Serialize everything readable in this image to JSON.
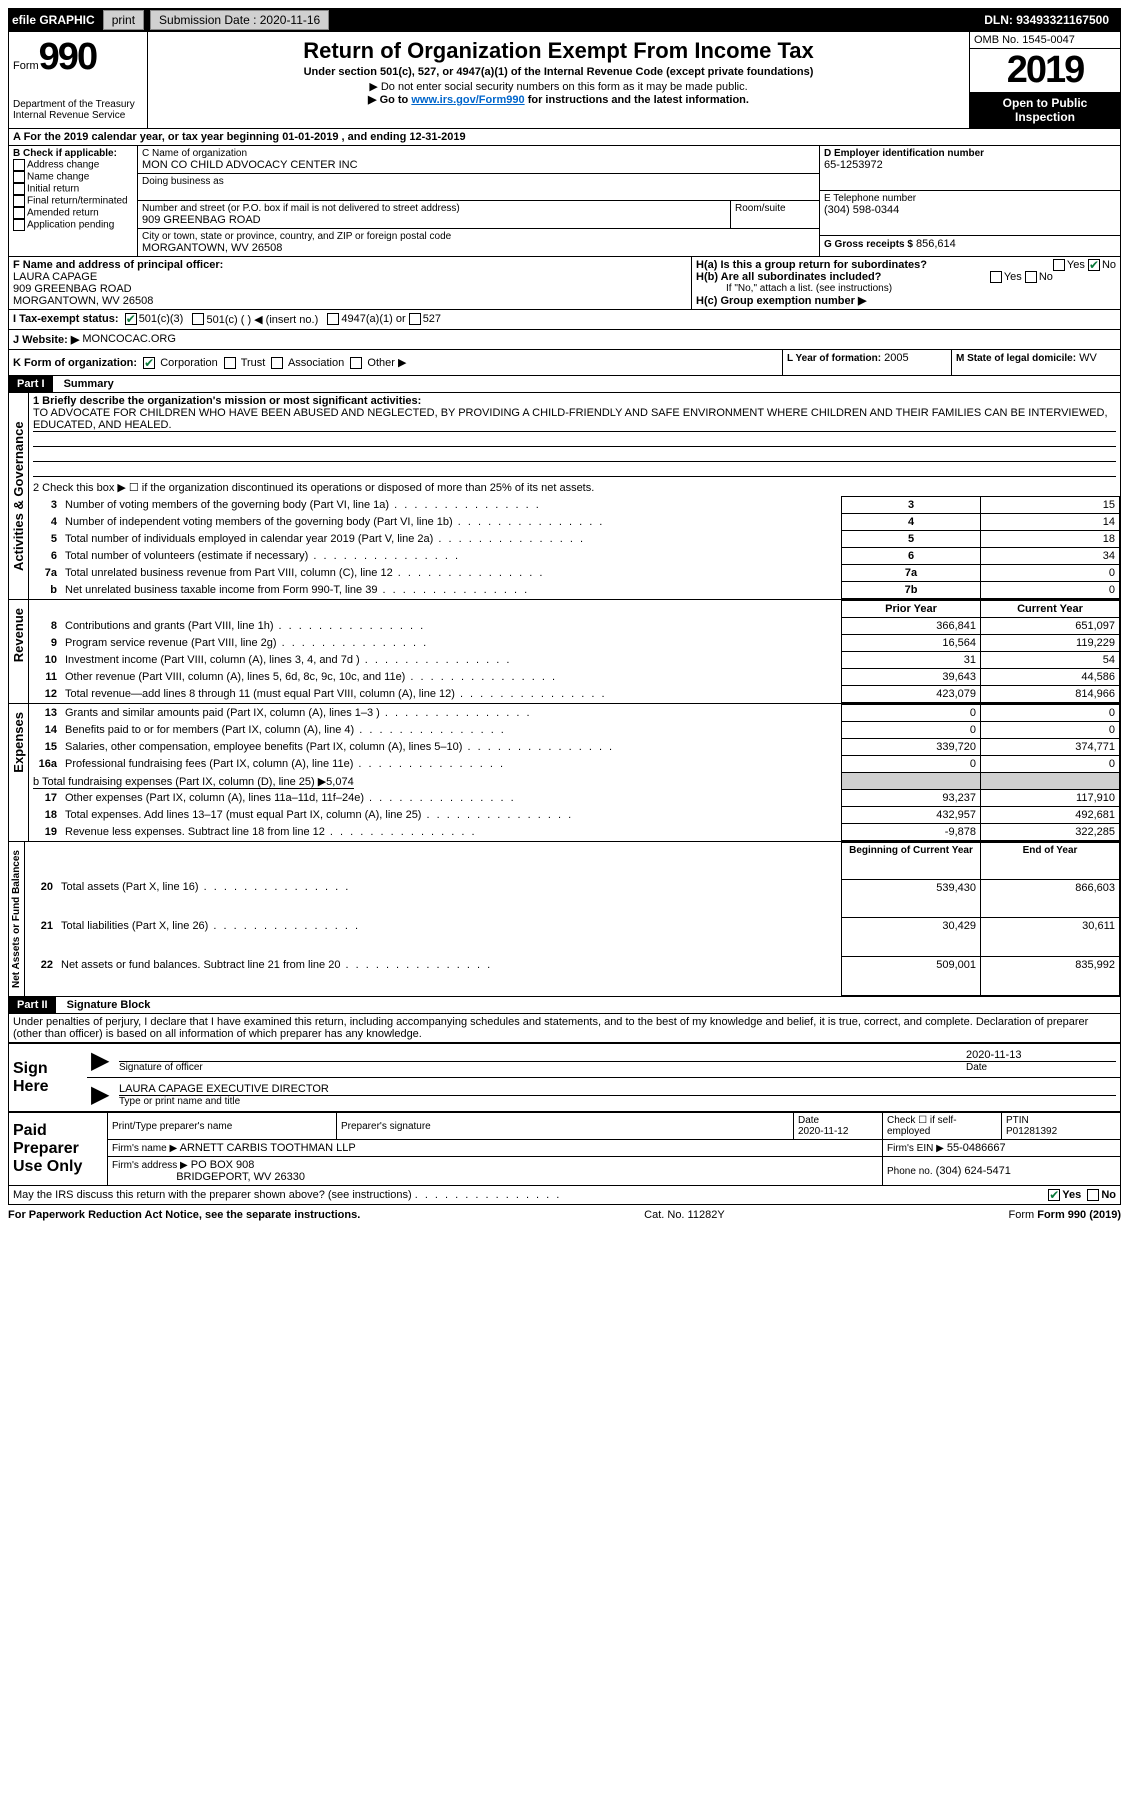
{
  "topbar": {
    "efile": "efile GRAPHIC",
    "print": "print",
    "sub_label": "Submission Date : 2020-11-16",
    "dln_label": "DLN: 93493321167500"
  },
  "header": {
    "form_label": "Form",
    "form_num": "990",
    "title": "Return of Organization Exempt From Income Tax",
    "sub1": "Under section 501(c), 527, or 4947(a)(1) of the Internal Revenue Code (except private foundations)",
    "sub2": "▶ Do not enter social security numbers on this form as it may be made public.",
    "sub3_pre": "▶ Go to ",
    "sub3_link": "www.irs.gov/Form990",
    "sub3_post": " for instructions and the latest information.",
    "dept": "Department of the Treasury\nInternal Revenue Service",
    "omb": "OMB No. 1545-0047",
    "year": "2019",
    "open": "Open to Public Inspection"
  },
  "a_line": "A For the 2019 calendar year, or tax year beginning 01-01-2019   , and ending 12-31-2019",
  "b": {
    "label": "B Check if applicable:",
    "opts": [
      "Address change",
      "Name change",
      "Initial return",
      "Final return/terminated",
      "Amended return",
      "Application pending"
    ]
  },
  "c": {
    "name_label": "C Name of organization",
    "name": "MON CO CHILD ADVOCACY CENTER INC",
    "dba_label": "Doing business as",
    "addr_label": "Number and street (or P.O. box if mail is not delivered to street address)",
    "room_label": "Room/suite",
    "addr": "909 GREENBAG ROAD",
    "city_label": "City or town, state or province, country, and ZIP or foreign postal code",
    "city": "MORGANTOWN, WV  26508"
  },
  "d": {
    "label": "D Employer identification number",
    "val": "65-1253972"
  },
  "e": {
    "label": "E Telephone number",
    "val": "(304) 598-0344"
  },
  "g": {
    "label": "G Gross receipts $",
    "val": "856,614"
  },
  "f": {
    "label": "F  Name and address of principal officer:",
    "name": "LAURA CAPAGE",
    "addr1": "909 GREENBAG ROAD",
    "addr2": "MORGANTOWN, WV  26508"
  },
  "h": {
    "ha": "H(a)  Is this a group return for subordinates?",
    "hb": "H(b)  Are all subordinates included?",
    "hb_note": "If \"No,\" attach a list. (see instructions)",
    "hc": "H(c)  Group exemption number ▶",
    "yes": "Yes",
    "no": "No"
  },
  "i": {
    "label": "I  Tax-exempt status:",
    "opt1": "501(c)(3)",
    "opt2": "501(c) (  ) ◀ (insert no.)",
    "opt3": "4947(a)(1) or",
    "opt4": "527"
  },
  "j": {
    "label": "J  Website: ▶",
    "val": "MONCOCAC.ORG"
  },
  "k": {
    "label": "K Form of organization:",
    "opts": [
      "Corporation",
      "Trust",
      "Association",
      "Other ▶"
    ]
  },
  "l": {
    "label": "L Year of formation:",
    "val": "2005"
  },
  "m": {
    "label": "M State of legal domicile:",
    "val": "WV"
  },
  "part1_label": "Part I",
  "part1_title": "Summary",
  "summary": {
    "line1_label": "1  Briefly describe the organization's mission or most significant activities:",
    "line1_text": "TO ADVOCATE FOR CHILDREN WHO HAVE BEEN ABUSED AND NEGLECTED, BY PROVIDING A CHILD-FRIENDLY AND SAFE ENVIRONMENT WHERE CHILDREN AND THEIR FAMILIES CAN BE INTERVIEWED, EDUCATED, AND HEALED.",
    "line2": "2  Check this box ▶ ☐ if the organization discontinued its operations or disposed of more than 25% of its net assets.",
    "rows_ag": [
      {
        "n": "3",
        "label": "Number of voting members of the governing body (Part VI, line 1a)",
        "box": "3",
        "val": "15"
      },
      {
        "n": "4",
        "label": "Number of independent voting members of the governing body (Part VI, line 1b)",
        "box": "4",
        "val": "14"
      },
      {
        "n": "5",
        "label": "Total number of individuals employed in calendar year 2019 (Part V, line 2a)",
        "box": "5",
        "val": "18"
      },
      {
        "n": "6",
        "label": "Total number of volunteers (estimate if necessary)",
        "box": "6",
        "val": "34"
      },
      {
        "n": "7a",
        "label": "Total unrelated business revenue from Part VIII, column (C), line 12",
        "box": "7a",
        "val": "0"
      },
      {
        "n": "b",
        "label": "Net unrelated business taxable income from Form 990-T, line 39",
        "box": "7b",
        "val": "0"
      }
    ],
    "prior_label": "Prior Year",
    "current_label": "Current Year",
    "revenue_rows": [
      {
        "n": "8",
        "label": "Contributions and grants (Part VIII, line 1h)",
        "py": "366,841",
        "cy": "651,097"
      },
      {
        "n": "9",
        "label": "Program service revenue (Part VIII, line 2g)",
        "py": "16,564",
        "cy": "119,229"
      },
      {
        "n": "10",
        "label": "Investment income (Part VIII, column (A), lines 3, 4, and 7d )",
        "py": "31",
        "cy": "54"
      },
      {
        "n": "11",
        "label": "Other revenue (Part VIII, column (A), lines 5, 6d, 8c, 9c, 10c, and 11e)",
        "py": "39,643",
        "cy": "44,586"
      },
      {
        "n": "12",
        "label": "Total revenue—add lines 8 through 11 (must equal Part VIII, column (A), line 12)",
        "py": "423,079",
        "cy": "814,966"
      }
    ],
    "expense_rows": [
      {
        "n": "13",
        "label": "Grants and similar amounts paid (Part IX, column (A), lines 1–3 )",
        "py": "0",
        "cy": "0"
      },
      {
        "n": "14",
        "label": "Benefits paid to or for members (Part IX, column (A), line 4)",
        "py": "0",
        "cy": "0"
      },
      {
        "n": "15",
        "label": "Salaries, other compensation, employee benefits (Part IX, column (A), lines 5–10)",
        "py": "339,720",
        "cy": "374,771"
      },
      {
        "n": "16a",
        "label": "Professional fundraising fees (Part IX, column (A), line 11e)",
        "py": "0",
        "cy": "0"
      }
    ],
    "line16b": "b  Total fundraising expenses (Part IX, column (D), line 25) ▶5,074",
    "expense_rows2": [
      {
        "n": "17",
        "label": "Other expenses (Part IX, column (A), lines 11a–11d, 11f–24e)",
        "py": "93,237",
        "cy": "117,910"
      },
      {
        "n": "18",
        "label": "Total expenses. Add lines 13–17 (must equal Part IX, column (A), line 25)",
        "py": "432,957",
        "cy": "492,681"
      },
      {
        "n": "19",
        "label": "Revenue less expenses. Subtract line 18 from line 12",
        "py": "-9,878",
        "cy": "322,285"
      }
    ],
    "begin_label": "Beginning of Current Year",
    "end_label": "End of Year",
    "net_rows": [
      {
        "n": "20",
        "label": "Total assets (Part X, line 16)",
        "py": "539,430",
        "cy": "866,603"
      },
      {
        "n": "21",
        "label": "Total liabilities (Part X, line 26)",
        "py": "30,429",
        "cy": "30,611"
      },
      {
        "n": "22",
        "label": "Net assets or fund balances. Subtract line 21 from line 20",
        "py": "509,001",
        "cy": "835,992"
      }
    ]
  },
  "vert_labels": {
    "ag": "Activities & Governance",
    "rev": "Revenue",
    "exp": "Expenses",
    "net": "Net Assets or Fund Balances"
  },
  "part2_label": "Part II",
  "part2_title": "Signature Block",
  "sig": {
    "penalties": "Under penalties of perjury, I declare that I have examined this return, including accompanying schedules and statements, and to the best of my knowledge and belief, it is true, correct, and complete. Declaration of preparer (other than officer) is based on all information of which preparer has any knowledge.",
    "sign_here": "Sign Here",
    "sig_officer": "Signature of officer",
    "date": "Date",
    "date_val": "2020-11-13",
    "officer_name": "LAURA CAPAGE  EXECUTIVE DIRECTOR",
    "type_name": "Type or print name and title",
    "paid": "Paid Preparer Use Only",
    "prep_name_label": "Print/Type preparer's name",
    "prep_sig_label": "Preparer's signature",
    "prep_date_label": "Date",
    "prep_date": "2020-11-12",
    "check_label": "Check ☐ if self-employed",
    "ptin_label": "PTIN",
    "ptin": "P01281392",
    "firm_name_label": "Firm's name   ▶",
    "firm_name": "ARNETT CARBIS TOOTHMAN LLP",
    "firm_ein_label": "Firm's EIN ▶",
    "firm_ein": "55-0486667",
    "firm_addr_label": "Firm's address ▶",
    "firm_addr1": "PO BOX 908",
    "firm_addr2": "BRIDGEPORT, WV  26330",
    "phone_label": "Phone no.",
    "phone": "(304) 624-5471",
    "may_irs": "May the IRS discuss this return with the preparer shown above? (see instructions)",
    "yes": "Yes",
    "no": "No"
  },
  "footer": {
    "paperwork": "For Paperwork Reduction Act Notice, see the separate instructions.",
    "cat": "Cat. No. 11282Y",
    "form": "Form 990 (2019)"
  }
}
